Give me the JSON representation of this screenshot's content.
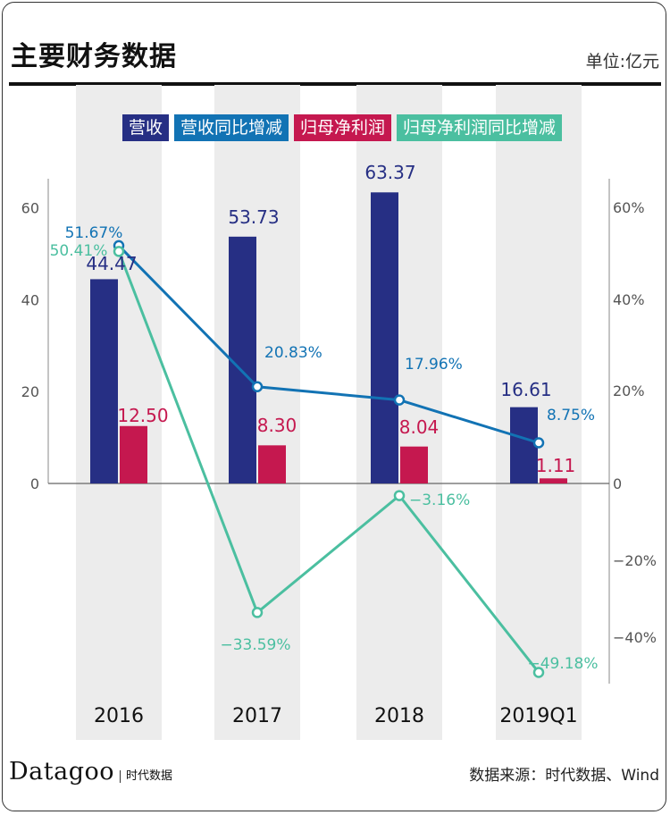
{
  "header": {
    "title": "主要财务数据",
    "unit": "单位:亿元"
  },
  "legend": [
    {
      "label": "营收",
      "color": "#262f84"
    },
    {
      "label": "营收同比增减",
      "color": "#1273b4"
    },
    {
      "label": "归母净利润",
      "color": "#c5184f"
    },
    {
      "label": "归母净利润同比增减",
      "color": "#4bbfa0"
    }
  ],
  "footer": {
    "brand": "Datagoo",
    "brand_sub": "时代数据",
    "source": "数据来源：时代数据、Wind"
  },
  "chart_data": {
    "type": "bar",
    "categories": [
      "2016",
      "2017",
      "2018",
      "2019Q1"
    ],
    "series": [
      {
        "name": "营收",
        "type": "bar",
        "axis": "left",
        "color": "#262f84",
        "values": [
          44.47,
          53.73,
          63.37,
          16.61
        ],
        "labels": [
          "44.47",
          "53.73",
          "63.37",
          "16.61"
        ]
      },
      {
        "name": "归母净利润",
        "type": "bar",
        "axis": "left",
        "color": "#c5184f",
        "values": [
          12.5,
          8.3,
          8.04,
          1.11
        ],
        "labels": [
          "12.50",
          "8.30",
          "8.04",
          "1.11"
        ]
      },
      {
        "name": "营收同比增减",
        "type": "line",
        "axis": "right",
        "color": "#1273b4",
        "values": [
          51.67,
          20.83,
          17.96,
          8.75
        ],
        "labels": [
          "51.67%",
          "20.83%",
          "17.96%",
          "8.75%"
        ]
      },
      {
        "name": "归母净利润同比增减",
        "type": "line",
        "axis": "right",
        "color": "#4bbfa0",
        "values": [
          50.41,
          -33.59,
          -3.16,
          -49.18
        ],
        "labels": [
          "50.41%",
          "−33.59%",
          "−3.16%",
          "−49.18%"
        ]
      }
    ],
    "left_axis": {
      "ticks": [
        "0",
        "20",
        "40",
        "60"
      ],
      "tick_values": [
        0,
        20,
        40,
        60
      ],
      "range": [
        0,
        60
      ]
    },
    "right_axis": {
      "ticks": [
        "60%",
        "40%",
        "20%",
        "0",
        "−20%",
        "−40%"
      ],
      "tick_values": [
        60,
        40,
        20,
        0,
        -20,
        -40
      ],
      "range": [
        -50,
        60
      ]
    },
    "band_color": "#ececec"
  }
}
